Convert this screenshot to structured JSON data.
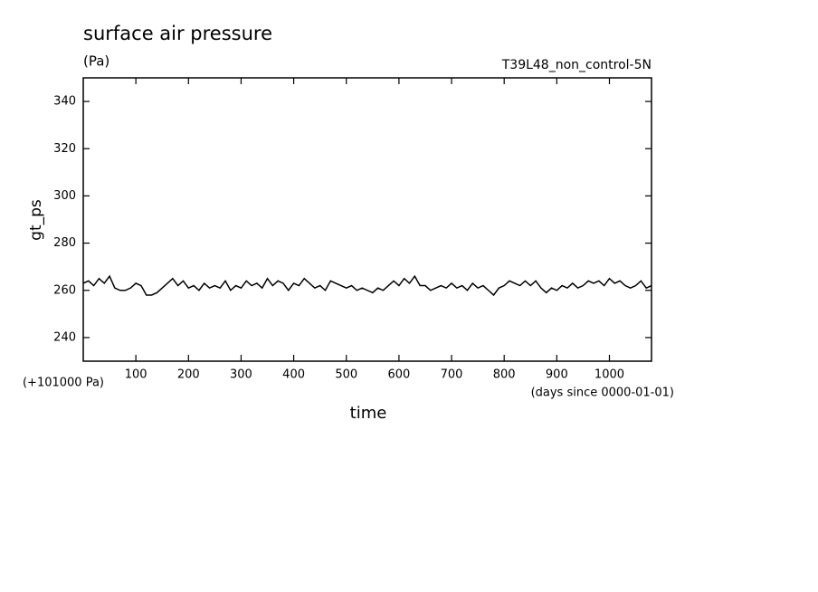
{
  "chart_data": {
    "type": "line",
    "title": "surface air pressure",
    "subtitle": "(Pa)",
    "annotation": "T39L48_non_control-5N",
    "y_label": "gt_ps",
    "y_offset_label": "(+101000 Pa)",
    "x_units_label": "(days since 0000-01-01)",
    "x_label": "time",
    "xlim": [
      0,
      1080
    ],
    "ylim": [
      230,
      350
    ],
    "xticks": [
      100,
      200,
      300,
      400,
      500,
      600,
      700,
      800,
      900,
      1000
    ],
    "yticks": [
      240,
      260,
      280,
      300,
      320,
      340
    ],
    "color": "#000000",
    "x": [
      0,
      10,
      20,
      30,
      40,
      50,
      60,
      70,
      80,
      90,
      100,
      110,
      120,
      130,
      140,
      150,
      160,
      170,
      180,
      190,
      200,
      210,
      220,
      230,
      240,
      250,
      260,
      270,
      280,
      290,
      300,
      310,
      320,
      330,
      340,
      350,
      360,
      370,
      380,
      390,
      400,
      410,
      420,
      430,
      440,
      450,
      460,
      470,
      480,
      490,
      500,
      510,
      520,
      530,
      540,
      550,
      560,
      570,
      580,
      590,
      600,
      610,
      620,
      630,
      640,
      650,
      660,
      670,
      680,
      690,
      700,
      710,
      720,
      730,
      740,
      750,
      760,
      770,
      780,
      790,
      800,
      810,
      820,
      830,
      840,
      850,
      860,
      870,
      880,
      890,
      900,
      910,
      920,
      930,
      940,
      950,
      960,
      970,
      980,
      990,
      1000,
      1010,
      1020,
      1030,
      1040,
      1050,
      1060,
      1070,
      1080
    ],
    "values": [
      263,
      264,
      262,
      265,
      263,
      266,
      261,
      260,
      260,
      261,
      263,
      262,
      258,
      258,
      259,
      261,
      263,
      265,
      262,
      264,
      261,
      262,
      260,
      263,
      261,
      262,
      261,
      264,
      260,
      262,
      261,
      264,
      262,
      263,
      261,
      265,
      262,
      264,
      263,
      260,
      263,
      262,
      265,
      263,
      261,
      262,
      260,
      264,
      263,
      262,
      261,
      262,
      260,
      261,
      260,
      259,
      261,
      260,
      262,
      264,
      262,
      265,
      263,
      266,
      262,
      262,
      260,
      261,
      262,
      261,
      263,
      261,
      262,
      260,
      263,
      261,
      262,
      260,
      258,
      261,
      262,
      264,
      263,
      262,
      264,
      262,
      264,
      261,
      259,
      261,
      260,
      262,
      261,
      263,
      261,
      262,
      264,
      263,
      264,
      262,
      265,
      263,
      264,
      262,
      261,
      262,
      264,
      261,
      262
    ]
  }
}
